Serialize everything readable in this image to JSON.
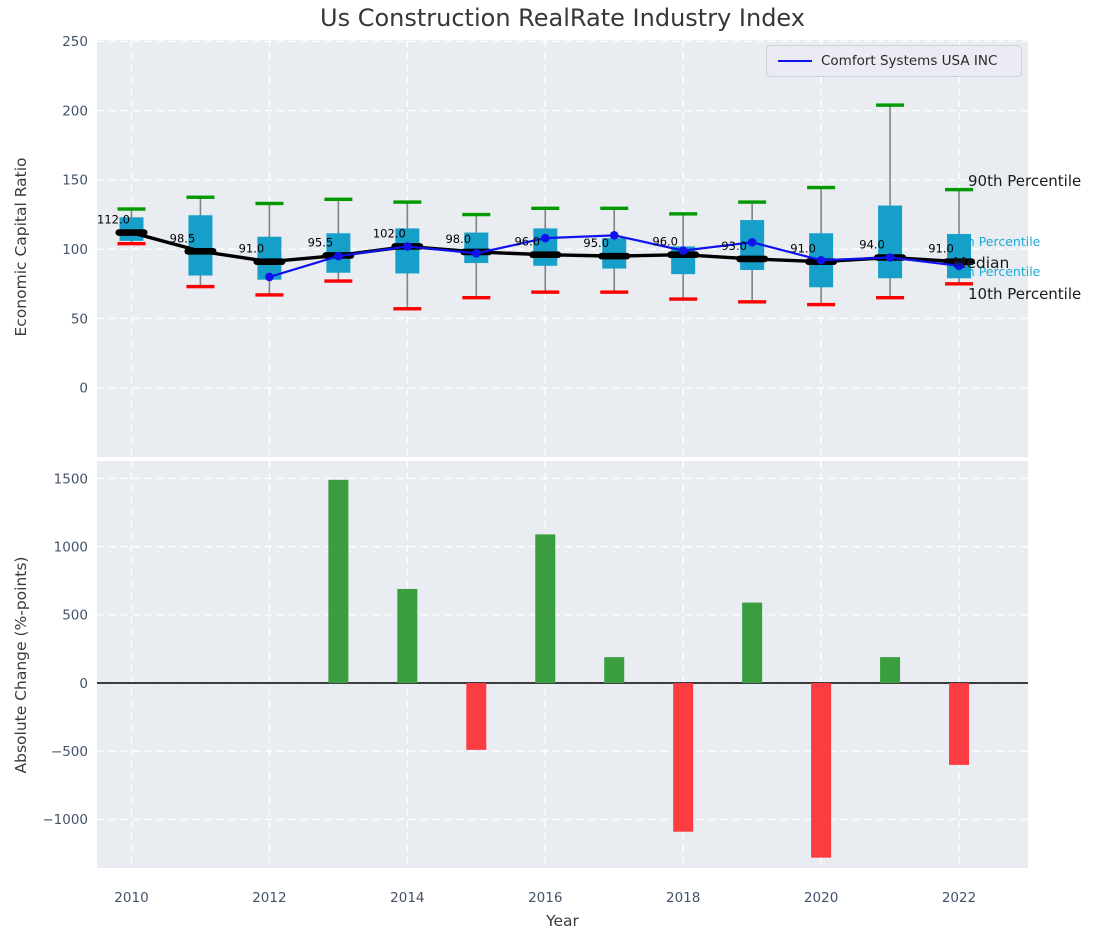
{
  "title": "Us Construction RealRate Industry Index",
  "legend": {
    "label": "Comfort Systems USA INC",
    "line_color": "#1111ef"
  },
  "colors": {
    "plot_background": "#e9edf1",
    "gridline": "#ffffff",
    "tick_label": "#43536b",
    "box_fill": "#169fc9",
    "whisker": "#828282",
    "cap_90th": "#009a00",
    "cap_10th": "#fd0000",
    "median": "#000000",
    "company_line": "#1111ef",
    "bar_positive": "#3a9d40",
    "bar_negative": "#fb3c41",
    "annotation_cyan": "#1ea9d6",
    "annotation_dark": "#1a1a1a"
  },
  "chart_data": [
    {
      "type": "boxplot+line",
      "title": "Us Construction RealRate Industry Index",
      "xlabel": "Year",
      "ylabel": "Economic Capital Ratio",
      "xlim": [
        2009.5,
        2023.0
      ],
      "ylim": [
        -50,
        251
      ],
      "yticks": [
        0,
        50,
        100,
        150,
        200,
        250
      ],
      "ytick_labels": [
        "0",
        "50",
        "100",
        "150",
        "200",
        "250"
      ],
      "xticks": [
        2010,
        2012,
        2014,
        2016,
        2018,
        2020,
        2022
      ],
      "xtick_labels": [
        "2010",
        "2012",
        "2014",
        "2016",
        "2018",
        "2020",
        "2022"
      ],
      "grid": true,
      "legend_position": "upper right",
      "years": [
        2010,
        2011,
        2012,
        2013,
        2014,
        2015,
        2016,
        2017,
        2018,
        2019,
        2020,
        2021,
        2022
      ],
      "boxes": [
        {
          "year": 2010,
          "p10": 104,
          "p25": 106,
          "median": 112.0,
          "p75": 123,
          "p90": 129
        },
        {
          "year": 2011,
          "p10": 73,
          "p25": 81,
          "median": 98.5,
          "p75": 124.5,
          "p90": 137.5
        },
        {
          "year": 2012,
          "p10": 67,
          "p25": 78,
          "median": 91.0,
          "p75": 109,
          "p90": 133
        },
        {
          "year": 2013,
          "p10": 77,
          "p25": 83,
          "median": 95.5,
          "p75": 111.5,
          "p90": 136
        },
        {
          "year": 2014,
          "p10": 57,
          "p25": 82.5,
          "median": 102.0,
          "p75": 115,
          "p90": 134
        },
        {
          "year": 2015,
          "p10": 65,
          "p25": 90,
          "median": 98.0,
          "p75": 112,
          "p90": 125
        },
        {
          "year": 2016,
          "p10": 69,
          "p25": 88,
          "median": 96.0,
          "p75": 115,
          "p90": 129.5
        },
        {
          "year": 2017,
          "p10": 69,
          "p25": 86,
          "median": 95.0,
          "p75": 108,
          "p90": 129.5
        },
        {
          "year": 2018,
          "p10": 64,
          "p25": 82,
          "median": 96.0,
          "p75": 102,
          "p90": 125.5
        },
        {
          "year": 2019,
          "p10": 62,
          "p25": 85,
          "median": 93.0,
          "p75": 121,
          "p90": 134
        },
        {
          "year": 2020,
          "p10": 60,
          "p25": 72.5,
          "median": 91.0,
          "p75": 111.5,
          "p90": 144.5
        },
        {
          "year": 2021,
          "p10": 65,
          "p25": 79,
          "median": 94.0,
          "p75": 131.5,
          "p90": 204
        },
        {
          "year": 2022,
          "p10": 75,
          "p25": 79,
          "median": 91.0,
          "p75": 111,
          "p90": 143
        }
      ],
      "median_labels": [
        "112.0",
        "98.5",
        "91.0",
        "95.5",
        "102.0",
        "98.0",
        "96.0",
        "95.0",
        "96.0",
        "93.0",
        "91.0",
        "94.0",
        "91.0"
      ],
      "series": [
        {
          "name": "Comfort Systems USA INC",
          "x": [
            2012,
            2013,
            2014,
            2015,
            2016,
            2017,
            2018,
            2019,
            2020,
            2021,
            2022
          ],
          "values": [
            80,
            95,
            102,
            97,
            108,
            110,
            99,
            105,
            92,
            94,
            88
          ]
        }
      ],
      "percentile_annotations": [
        {
          "text": "90th Percentile",
          "style": "dark"
        },
        {
          "text": "75th Percentile",
          "style": "cyan"
        },
        {
          "text": "Median",
          "style": "dark"
        },
        {
          "text": "25th Percentile",
          "style": "cyan"
        },
        {
          "text": "10th Percentile",
          "style": "dark"
        }
      ]
    },
    {
      "type": "bar",
      "xlabel": "Year",
      "ylabel": "Absolute Change (%-points)",
      "xlim": [
        2009.5,
        2023.0
      ],
      "ylim": [
        -1356,
        1628
      ],
      "yticks": [
        -1000,
        -500,
        0,
        500,
        1000,
        1500
      ],
      "ytick_labels": [
        "−1000",
        "−500",
        "0",
        "500",
        "1000",
        "1500"
      ],
      "xticks": [
        2010,
        2012,
        2014,
        2016,
        2018,
        2020,
        2022
      ],
      "xtick_labels": [
        "2010",
        "2012",
        "2014",
        "2016",
        "2018",
        "2020",
        "2022"
      ],
      "grid": true,
      "categories": [
        2013,
        2014,
        2015,
        2016,
        2017,
        2018,
        2019,
        2020,
        2021,
        2022
      ],
      "values": [
        1490,
        690,
        -490,
        1090,
        190,
        -1090,
        590,
        -1280,
        190,
        -600
      ]
    }
  ]
}
